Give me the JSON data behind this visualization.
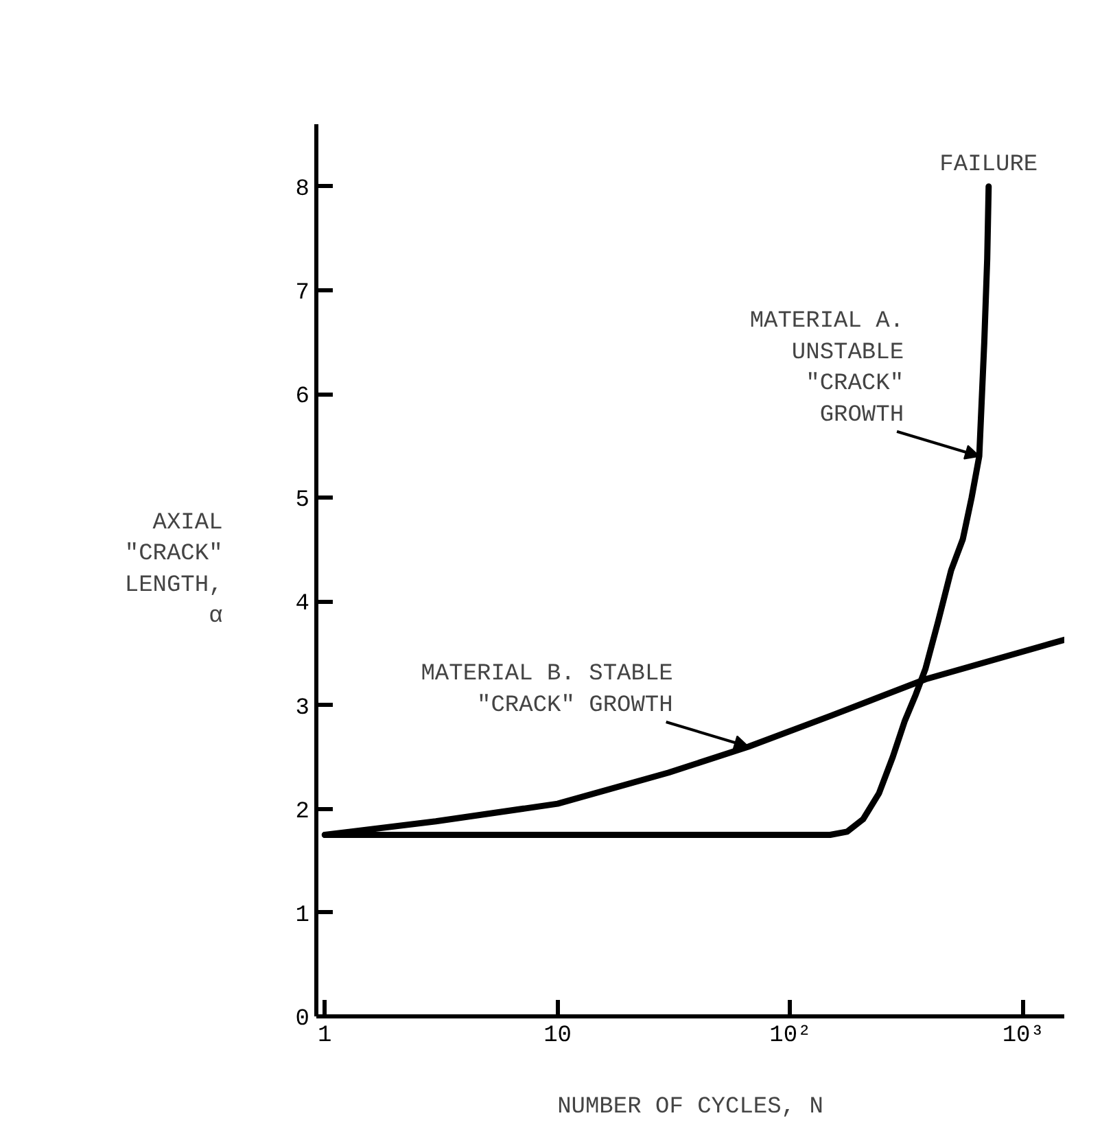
{
  "chart_data": {
    "type": "line",
    "xlabel": "NUMBER OF CYCLES, N",
    "ylabel": "AXIAL\n\"CRACK\"\nLENGTH,\nα",
    "log": "x",
    "xlim": [
      0.92,
      1500
    ],
    "ylim": [
      0,
      8.6
    ],
    "xticks": [
      1,
      10,
      {
        "value": 100,
        "label": "10²"
      },
      {
        "value": 1000,
        "label": "10³"
      }
    ],
    "yticks": [
      0,
      1,
      2,
      3,
      4,
      5,
      6,
      7,
      8
    ],
    "grid": false,
    "marker": "none",
    "line_style": "solid",
    "series": [
      {
        "color": "#000000",
        "x": [
          1,
          148,
          175,
          205,
          240,
          275,
          310,
          345,
          380,
          430,
          490,
          550,
          600,
          647,
          680,
          700,
          710
        ],
        "values": [
          1.75,
          1.75,
          1.78,
          1.9,
          2.15,
          2.5,
          2.85,
          3.1,
          3.35,
          3.8,
          4.3,
          4.6,
          5.0,
          5.4,
          6.5,
          7.3,
          8.0
        ]
      },
      {
        "color": "#000000",
        "x": [
          1,
          3,
          10,
          30,
          66,
          150,
          380,
          1500
        ],
        "values": [
          1.75,
          1.88,
          2.05,
          2.35,
          2.6,
          2.9,
          3.25,
          3.63
        ]
      }
    ],
    "annotations": [
      {
        "text": "FAILURE",
        "x": 710,
        "y": 8.0
      },
      {
        "text": "MATERIAL A.\nUNSTABLE\n\"CRACK\"\nGROWTH",
        "x": 647,
        "y": 5.4
      },
      {
        "text": "MATERIAL B. STABLE\n\"CRACK\" GROWTH",
        "x": 66,
        "y": 2.6
      }
    ]
  }
}
